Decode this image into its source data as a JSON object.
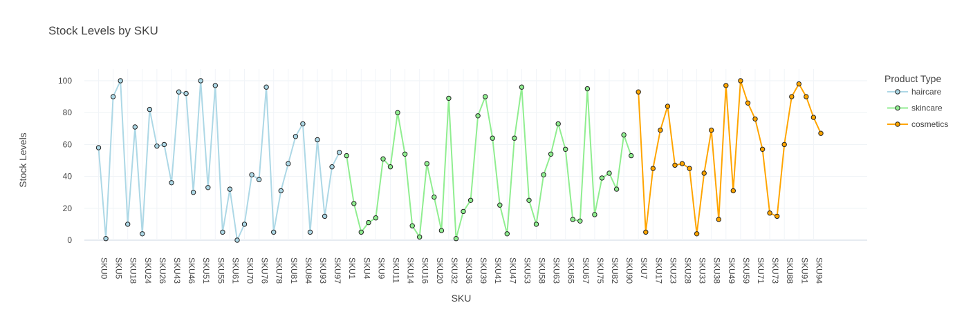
{
  "chart_data": {
    "type": "line",
    "title": "Stock Levels by SKU",
    "xlabel": "SKU",
    "ylabel": "Stock Levels",
    "ylim": [
      0,
      100
    ],
    "yticks": [
      0,
      20,
      40,
      60,
      80,
      100
    ],
    "grid": true,
    "legend_title": "Product Type",
    "legend_position": "top-right",
    "tick_labels": [
      "SKU0",
      "SKU5",
      "SKU18",
      "SKU24",
      "SKU26",
      "SKU43",
      "SKU46",
      "SKU51",
      "SKU55",
      "SKU61",
      "SKU70",
      "SKU76",
      "SKU78",
      "SKU81",
      "SKU84",
      "SKU93",
      "SKU97",
      "SKU1",
      "SKU4",
      "SKU9",
      "SKU11",
      "SKU14",
      "SKU16",
      "SKU20",
      "SKU32",
      "SKU36",
      "SKU39",
      "SKU41",
      "SKU47",
      "SKU53",
      "SKU58",
      "SKU63",
      "SKU65",
      "SKU67",
      "SKU75",
      "SKU82",
      "SKU90",
      "SKU7",
      "SKU17",
      "SKU23",
      "SKU28",
      "SKU33",
      "SKU38",
      "SKU49",
      "SKU59",
      "SKU71",
      "SKU73",
      "SKU88",
      "SKU91",
      "SKU94"
    ],
    "series": [
      {
        "name": "haircare",
        "color": "#add8e6",
        "values": [
          58,
          1,
          90,
          100,
          10,
          71,
          4,
          82,
          59,
          60,
          36,
          93,
          92,
          30,
          100,
          33,
          97,
          5,
          32,
          0,
          10,
          41,
          38,
          96,
          5,
          31,
          48,
          65,
          73,
          5,
          63,
          15,
          46,
          55
        ]
      },
      {
        "name": "skincare",
        "color": "#90ee90",
        "values": [
          53,
          23,
          5,
          11,
          14,
          51,
          46,
          80,
          54,
          9,
          2,
          48,
          27,
          6,
          89,
          1,
          18,
          25,
          78,
          90,
          64,
          22,
          4,
          64,
          96,
          25,
          10,
          41,
          54,
          73,
          57,
          13,
          12,
          95,
          16,
          39,
          42,
          32,
          66,
          53
        ]
      },
      {
        "name": "cosmetics",
        "color": "#ffa500",
        "values": [
          93,
          5,
          45,
          69,
          84,
          47,
          48,
          45,
          4,
          42,
          69,
          13,
          97,
          31,
          100,
          86,
          76,
          57,
          17,
          15,
          60,
          90,
          98,
          90,
          77,
          67
        ]
      }
    ]
  }
}
